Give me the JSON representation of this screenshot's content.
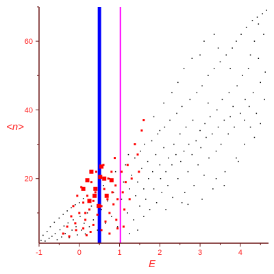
{
  "chart_data": {
    "type": "scatter",
    "title": "",
    "xlabel": "E",
    "ylabel": "<n>",
    "xlim": [
      -1,
      4.7
    ],
    "ylim": [
      1.2,
      70
    ],
    "x_ticks": [
      -1,
      0,
      1,
      2,
      3,
      4
    ],
    "x_tick_labels": [
      "-1",
      "0",
      "1",
      "2",
      "3",
      "4"
    ],
    "y_ticks": [
      20,
      40,
      60
    ],
    "y_tick_labels": [
      "20",
      "40",
      "60"
    ],
    "grid": false,
    "legend": "none",
    "colors": {
      "axis": "#6b1515",
      "labels": "#ff2020",
      "small_points": "#000000",
      "large_points": "#ff0000",
      "line_blue": "#0000ff",
      "line_magenta": "#ff00ff"
    },
    "vertical_lines": [
      {
        "x": 0.5,
        "color": "#0000ff"
      },
      {
        "x": 1.02,
        "color": "#ff00ff"
      }
    ],
    "series": [
      {
        "color": "#000000",
        "marker_size": 1.5,
        "points": [
          [
            -0.95,
            2.0
          ],
          [
            -0.9,
            3.5
          ],
          [
            -0.85,
            1.8
          ],
          [
            -0.8,
            4.6
          ],
          [
            -0.75,
            2.6
          ],
          [
            -0.72,
            6.0
          ],
          [
            -0.68,
            3.2
          ],
          [
            -0.62,
            7.3
          ],
          [
            -0.6,
            4.0
          ],
          [
            -0.55,
            2.2
          ],
          [
            -0.5,
            8.5
          ],
          [
            -0.48,
            5.1
          ],
          [
            -0.44,
            3.0
          ],
          [
            -0.4,
            9.6
          ],
          [
            -0.38,
            6.2
          ],
          [
            -0.35,
            4.0
          ],
          [
            -0.3,
            10.6
          ],
          [
            -0.28,
            7.1
          ],
          [
            -0.25,
            2.8
          ],
          [
            -0.2,
            11.5
          ],
          [
            -0.18,
            5.0
          ],
          [
            -0.15,
            8.0
          ],
          [
            -0.1,
            12.4
          ],
          [
            -0.08,
            6.0
          ],
          [
            -0.05,
            3.6
          ],
          [
            0.0,
            13.0
          ],
          [
            0.02,
            9.0
          ],
          [
            0.05,
            5.0
          ],
          [
            0.1,
            14.2
          ],
          [
            0.12,
            7.0
          ],
          [
            0.15,
            3.9
          ],
          [
            0.2,
            10.0
          ],
          [
            0.25,
            6.0
          ],
          [
            0.3,
            12.0
          ],
          [
            0.35,
            8.0
          ],
          [
            0.4,
            15.0
          ],
          [
            0.45,
            5.0
          ],
          [
            0.55,
            11.0
          ],
          [
            0.6,
            18.0
          ],
          [
            0.65,
            7.0
          ],
          [
            0.7,
            13.5
          ],
          [
            0.75,
            20.0
          ],
          [
            0.8,
            9.0
          ],
          [
            0.85,
            16.0
          ],
          [
            0.9,
            22.0
          ],
          [
            0.95,
            6.0
          ],
          [
            1.05,
            14.0
          ],
          [
            1.1,
            19.0
          ],
          [
            1.15,
            24.0
          ],
          [
            1.2,
            10.0
          ],
          [
            1.22,
            27.0
          ],
          [
            1.25,
            17.0
          ],
          [
            1.3,
            21.0
          ],
          [
            1.35,
            8.0
          ],
          [
            1.38,
            26.0
          ],
          [
            1.4,
            15.0
          ],
          [
            1.45,
            19.0
          ],
          [
            1.5,
            12.0
          ],
          [
            1.52,
            28.0
          ],
          [
            1.55,
            23.0
          ],
          [
            1.6,
            17.0
          ],
          [
            1.62,
            30.0
          ],
          [
            1.65,
            14.0
          ],
          [
            1.7,
            25.0
          ],
          [
            1.72,
            20.0
          ],
          [
            1.75,
            11.0
          ],
          [
            1.8,
            31.0
          ],
          [
            1.82,
            22.0
          ],
          [
            1.85,
            17.0
          ],
          [
            1.9,
            27.0
          ],
          [
            1.92,
            13.0
          ],
          [
            1.95,
            33.0
          ],
          [
            2.0,
            24.0
          ],
          [
            2.02,
            20.0
          ],
          [
            2.05,
            16.0
          ],
          [
            2.1,
            29.0
          ],
          [
            2.12,
            35.0
          ],
          [
            2.15,
            22.0
          ],
          [
            2.2,
            18.0
          ],
          [
            2.22,
            26.0
          ],
          [
            2.25,
            37.0
          ],
          [
            2.3,
            24.0
          ],
          [
            2.32,
            14.5
          ],
          [
            2.35,
            30.0
          ],
          [
            2.4,
            27.0
          ],
          [
            2.42,
            39.0
          ],
          [
            2.45,
            20.0
          ],
          [
            2.5,
            33.0
          ],
          [
            2.52,
            25.0
          ],
          [
            2.55,
            41.0
          ],
          [
            2.6,
            28.0
          ],
          [
            2.62,
            16.0
          ],
          [
            2.65,
            35.0
          ],
          [
            2.7,
            22.0
          ],
          [
            2.72,
            30.0
          ],
          [
            2.75,
            43.0
          ],
          [
            2.8,
            27.0
          ],
          [
            2.82,
            37.0
          ],
          [
            2.85,
            18.0
          ],
          [
            2.9,
            31.0
          ],
          [
            2.92,
            45.0
          ],
          [
            2.95,
            24.0
          ],
          [
            3.0,
            34.0
          ],
          [
            3.02,
            29.0
          ],
          [
            3.05,
            47.0
          ],
          [
            3.1,
            21.0
          ],
          [
            3.12,
            36.0
          ],
          [
            3.15,
            32.0
          ],
          [
            3.2,
            50.0
          ],
          [
            3.22,
            26.0
          ],
          [
            3.25,
            38.0
          ],
          [
            3.3,
            33.0
          ],
          [
            3.32,
            17.0
          ],
          [
            3.35,
            52.0
          ],
          [
            3.4,
            28.0
          ],
          [
            3.42,
            40.0
          ],
          [
            3.45,
            35.0
          ],
          [
            3.5,
            54.0
          ],
          [
            3.52,
            30.0
          ],
          [
            3.55,
            43.0
          ],
          [
            3.6,
            37.0
          ],
          [
            3.62,
            22.0
          ],
          [
            3.65,
            56.0
          ],
          [
            3.7,
            33.0
          ],
          [
            3.72,
            45.0
          ],
          [
            3.75,
            38.0
          ],
          [
            3.8,
            58.0
          ],
          [
            3.82,
            41.0
          ],
          [
            3.85,
            35.0
          ],
          [
            3.9,
            60.0
          ],
          [
            3.92,
            47.0
          ],
          [
            3.95,
            25.0
          ],
          [
            4.0,
            39.0
          ],
          [
            4.02,
            62.0
          ],
          [
            4.05,
            50.0
          ],
          [
            4.1,
            37.0
          ],
          [
            4.12,
            43.0
          ],
          [
            4.15,
            64.0
          ],
          [
            4.2,
            52.0
          ],
          [
            4.22,
            41.0
          ],
          [
            4.25,
            56.0
          ],
          [
            4.3,
            66.0
          ],
          [
            4.32,
            45.0
          ],
          [
            4.35,
            60.0
          ],
          [
            4.4,
            39.0
          ],
          [
            4.42,
            67.0
          ],
          [
            4.45,
            55.0
          ],
          [
            4.5,
            48.0
          ],
          [
            4.55,
            68.0
          ],
          [
            4.58,
            62.0
          ],
          [
            4.6,
            43.0
          ],
          [
            4.62,
            51.0
          ],
          [
            4.65,
            69.0
          ],
          [
            2.6,
            52.0
          ],
          [
            2.8,
            55.0
          ],
          [
            3.0,
            56.0
          ],
          [
            3.1,
            60.0
          ],
          [
            3.35,
            62.0
          ],
          [
            3.45,
            58.0
          ],
          [
            4.45,
            65.0
          ],
          [
            2.3,
            45.0
          ],
          [
            2.1,
            42.0
          ],
          [
            2.45,
            48.0
          ],
          [
            3.9,
            26.0
          ],
          [
            4.1,
            30.0
          ],
          [
            3.6,
            18.0
          ],
          [
            2.0,
            34.0
          ],
          [
            1.85,
            38.0
          ],
          [
            3.2,
            42.0
          ],
          [
            3.75,
            52.0
          ],
          [
            4.25,
            35.0
          ],
          [
            2.7,
            12.5
          ],
          [
            3.05,
            14.0
          ],
          [
            1.6,
            9.0
          ],
          [
            1.45,
            5.0
          ],
          [
            1.25,
            4.0
          ],
          [
            2.15,
            11.0
          ],
          [
            2.55,
            13.0
          ],
          [
            3.4,
            20.0
          ],
          [
            4.35,
            32.0
          ],
          [
            4.5,
            36.0
          ]
        ]
      },
      {
        "color": "#ff0000",
        "marker_size": 3,
        "points": [
          [
            -0.4,
            4.0
          ],
          [
            -0.3,
            6.0
          ],
          [
            -0.2,
            9.0
          ],
          [
            -0.15,
            12.0
          ],
          [
            -0.1,
            7.0
          ],
          [
            -0.05,
            15.0
          ],
          [
            0.0,
            10.0
          ],
          [
            0.05,
            17.5
          ],
          [
            0.1,
            13.0
          ],
          [
            0.1,
            5.5
          ],
          [
            0.15,
            8.0
          ],
          [
            0.2,
            15.0
          ],
          [
            0.25,
            11.0
          ],
          [
            0.3,
            19.0
          ],
          [
            0.35,
            6.5
          ],
          [
            0.4,
            16.0
          ],
          [
            0.42,
            22.0
          ],
          [
            0.45,
            9.5
          ],
          [
            0.55,
            12.0
          ],
          [
            0.6,
            24.0
          ],
          [
            0.62,
            17.0
          ],
          [
            0.65,
            7.5
          ],
          [
            0.7,
            14.0
          ],
          [
            0.72,
            20.0
          ],
          [
            0.75,
            10.0
          ],
          [
            0.8,
            22.0
          ],
          [
            0.82,
            16.0
          ],
          [
            0.85,
            12.5
          ],
          [
            0.88,
            26.0
          ],
          [
            0.9,
            18.0
          ],
          [
            0.92,
            8.0
          ],
          [
            0.95,
            14.0
          ],
          [
            1.05,
            22.0
          ],
          [
            1.08,
            16.0
          ],
          [
            1.12,
            11.0
          ],
          [
            1.15,
            19.0
          ],
          [
            1.2,
            24.0
          ],
          [
            1.25,
            14.0
          ],
          [
            1.3,
            20.0
          ],
          [
            1.38,
            30.0
          ],
          [
            1.45,
            27.0
          ],
          [
            1.55,
            34.0
          ],
          [
            1.6,
            37.0
          ],
          [
            1.48,
            22.0
          ],
          [
            0.18,
            3.5
          ],
          [
            0.28,
            4.5
          ],
          [
            -0.25,
            3.2
          ],
          [
            0.55,
            5.0
          ],
          [
            0.75,
            4.0
          ],
          [
            0.95,
            5.5
          ],
          [
            1.1,
            6.0
          ],
          [
            0.35,
            13.5
          ],
          [
            0.15,
            10.0
          ],
          [
            -0.08,
            5.0
          ]
        ]
      },
      {
        "color": "#ff0000",
        "marker_size": 6,
        "points": [
          [
            0.2,
            19.5
          ],
          [
            0.3,
            22.0
          ],
          [
            0.4,
            17.0
          ],
          [
            0.55,
            23.5
          ],
          [
            0.62,
            20.0
          ],
          [
            0.38,
            15.0
          ],
          [
            0.1,
            17.0
          ],
          [
            0.48,
            12.0
          ],
          [
            0.25,
            13.5
          ],
          [
            0.68,
            15.0
          ],
          [
            0.8,
            19.5
          ],
          [
            0.52,
            20.5
          ]
        ]
      }
    ]
  }
}
